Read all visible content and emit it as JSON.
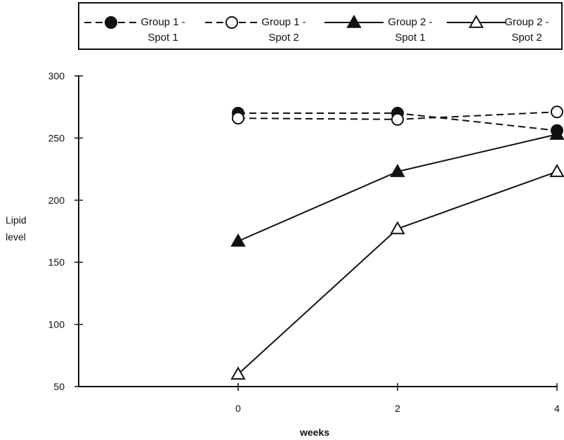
{
  "chart_data": {
    "type": "line",
    "title": "",
    "xlabel": "weeks",
    "ylabel": "Lipid\nlevel",
    "x": [
      0,
      2,
      4
    ],
    "xlim": [
      -2,
      4
    ],
    "ylim": [
      50,
      300
    ],
    "yticks": [
      50,
      100,
      150,
      200,
      250,
      300
    ],
    "xticks": [
      0,
      2,
      4
    ],
    "grid": false,
    "legend_position": "top",
    "series": [
      {
        "name": "Group 1 - Spot 1",
        "values": [
          270,
          270,
          256
        ],
        "line": "dashed",
        "marker": "circle",
        "filled": true
      },
      {
        "name": "Group 1 - Spot 2",
        "values": [
          266,
          265,
          271
        ],
        "line": "dashed",
        "marker": "circle",
        "filled": false
      },
      {
        "name": "Group 2 - Spot 1",
        "values": [
          167,
          223,
          253
        ],
        "line": "solid",
        "marker": "triangle",
        "filled": true
      },
      {
        "name": "Group 2 - Spot 2",
        "values": [
          60,
          177,
          223
        ],
        "line": "solid",
        "marker": "triangle",
        "filled": false
      }
    ]
  }
}
